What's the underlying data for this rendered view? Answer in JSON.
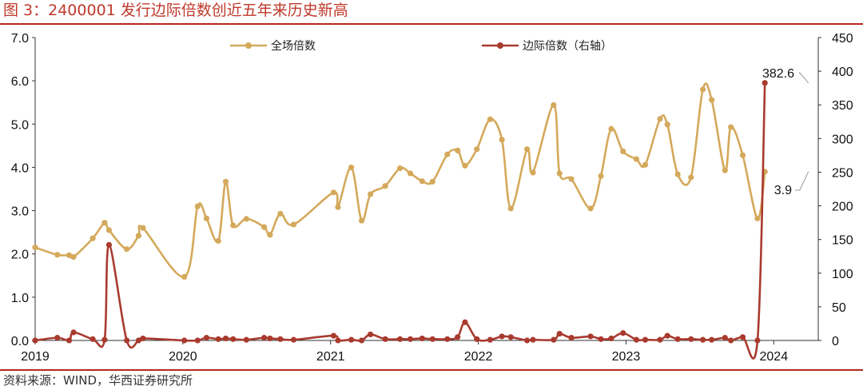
{
  "title": "图 3：2400001 发行边际倍数创近五年来历史新高",
  "source": "资料来源：WIND，华西证券研究所",
  "colors": {
    "full": "#d4a95b",
    "marginal": "#a93a2e",
    "accent": "#b5271f"
  },
  "chart_data": {
    "type": "line",
    "x_ticks": [
      "2019",
      "2020",
      "2021",
      "2022",
      "2023",
      "2024"
    ],
    "x_range": [
      2019.0,
      2024.35
    ],
    "y_left": {
      "range": [
        0,
        7
      ],
      "ticks": [
        "0.0",
        "1.0",
        "2.0",
        "3.0",
        "4.0",
        "5.0",
        "6.0",
        "7.0"
      ]
    },
    "y_right": {
      "range": [
        0,
        450
      ],
      "ticks": [
        "0",
        "50",
        "100",
        "150",
        "200",
        "250",
        "300",
        "350",
        "400",
        "450"
      ]
    },
    "legend": [
      "全场倍数",
      "边际倍数（右轴）"
    ],
    "annotations": [
      {
        "text": "382.6",
        "series": 1,
        "x": 2024.3,
        "value": 382.6
      },
      {
        "text": "3.9",
        "series": 0,
        "x": 2024.3,
        "value": 3.9
      }
    ],
    "series": [
      {
        "name": "全场倍数",
        "axis": "left",
        "points": [
          [
            2019.0,
            2.15
          ],
          [
            2019.15,
            1.98
          ],
          [
            2019.23,
            1.97
          ],
          [
            2019.26,
            1.93
          ],
          [
            2019.39,
            2.36
          ],
          [
            2019.47,
            2.72
          ],
          [
            2019.5,
            2.55
          ],
          [
            2019.62,
            2.11
          ],
          [
            2019.7,
            2.42
          ],
          [
            2019.73,
            2.6
          ],
          [
            2020.01,
            1.47
          ],
          [
            2020.1,
            3.1
          ],
          [
            2020.16,
            2.82
          ],
          [
            2020.24,
            2.3
          ],
          [
            2020.29,
            3.67
          ],
          [
            2020.34,
            2.66
          ],
          [
            2020.43,
            2.81
          ],
          [
            2020.55,
            2.62
          ],
          [
            2020.59,
            2.44
          ],
          [
            2020.66,
            2.93
          ],
          [
            2020.75,
            2.68
          ],
          [
            2021.02,
            3.42
          ],
          [
            2021.05,
            3.08
          ],
          [
            2021.14,
            4.0
          ],
          [
            2021.21,
            2.77
          ],
          [
            2021.27,
            3.38
          ],
          [
            2021.37,
            3.57
          ],
          [
            2021.47,
            3.98
          ],
          [
            2021.54,
            3.86
          ],
          [
            2021.62,
            3.68
          ],
          [
            2021.69,
            3.67
          ],
          [
            2021.79,
            4.3
          ],
          [
            2021.86,
            4.39
          ],
          [
            2021.91,
            4.04
          ],
          [
            2021.99,
            4.42
          ],
          [
            2022.08,
            5.11
          ],
          [
            2022.16,
            4.64
          ],
          [
            2022.22,
            3.05
          ],
          [
            2022.33,
            4.42
          ],
          [
            2022.37,
            3.88
          ],
          [
            2022.51,
            5.44
          ],
          [
            2022.55,
            3.86
          ],
          [
            2022.63,
            3.73
          ],
          [
            2022.76,
            3.05
          ],
          [
            2022.83,
            3.8
          ],
          [
            2022.9,
            4.89
          ],
          [
            2022.98,
            4.37
          ],
          [
            2023.07,
            4.19
          ],
          [
            2023.13,
            4.06
          ],
          [
            2023.23,
            5.12
          ],
          [
            2023.28,
            4.99
          ],
          [
            2023.35,
            3.84
          ],
          [
            2023.44,
            3.77
          ],
          [
            2023.52,
            5.8
          ],
          [
            2023.58,
            5.56
          ],
          [
            2023.67,
            3.93
          ],
          [
            2023.71,
            4.93
          ],
          [
            2023.79,
            4.28
          ],
          [
            2023.89,
            2.82
          ],
          [
            2023.94,
            3.9
          ]
        ]
      },
      {
        "name": "边际倍数（右轴）",
        "axis": "right",
        "points": [
          [
            2019.0,
            0
          ],
          [
            2019.15,
            4
          ],
          [
            2019.23,
            0
          ],
          [
            2019.26,
            12
          ],
          [
            2019.39,
            2
          ],
          [
            2019.47,
            1
          ],
          [
            2019.5,
            142
          ],
          [
            2019.62,
            0
          ],
          [
            2019.7,
            0
          ],
          [
            2019.73,
            3
          ],
          [
            2020.01,
            0
          ],
          [
            2020.1,
            0
          ],
          [
            2020.16,
            4
          ],
          [
            2020.24,
            2
          ],
          [
            2020.29,
            3
          ],
          [
            2020.34,
            2
          ],
          [
            2020.43,
            1
          ],
          [
            2020.55,
            4
          ],
          [
            2020.59,
            3
          ],
          [
            2020.66,
            2
          ],
          [
            2020.75,
            1
          ],
          [
            2021.02,
            7
          ],
          [
            2021.05,
            0
          ],
          [
            2021.14,
            1
          ],
          [
            2021.21,
            0
          ],
          [
            2021.27,
            9
          ],
          [
            2021.37,
            2
          ],
          [
            2021.47,
            2
          ],
          [
            2021.54,
            2
          ],
          [
            2021.62,
            3
          ],
          [
            2021.69,
            2
          ],
          [
            2021.79,
            2
          ],
          [
            2021.86,
            5
          ],
          [
            2021.91,
            27
          ],
          [
            2021.99,
            2
          ],
          [
            2022.08,
            1
          ],
          [
            2022.16,
            6
          ],
          [
            2022.22,
            5
          ],
          [
            2022.33,
            0
          ],
          [
            2022.37,
            1
          ],
          [
            2022.51,
            1
          ],
          [
            2022.55,
            10
          ],
          [
            2022.63,
            4
          ],
          [
            2022.76,
            6
          ],
          [
            2022.83,
            2
          ],
          [
            2022.9,
            3
          ],
          [
            2022.98,
            11
          ],
          [
            2023.07,
            1
          ],
          [
            2023.13,
            1
          ],
          [
            2023.23,
            1
          ],
          [
            2023.28,
            7
          ],
          [
            2023.35,
            2
          ],
          [
            2023.44,
            2
          ],
          [
            2023.52,
            1
          ],
          [
            2023.58,
            1
          ],
          [
            2023.67,
            4
          ],
          [
            2023.71,
            0
          ],
          [
            2023.79,
            5
          ],
          [
            2023.89,
            0
          ],
          [
            2023.94,
            382.6
          ]
        ]
      }
    ]
  }
}
